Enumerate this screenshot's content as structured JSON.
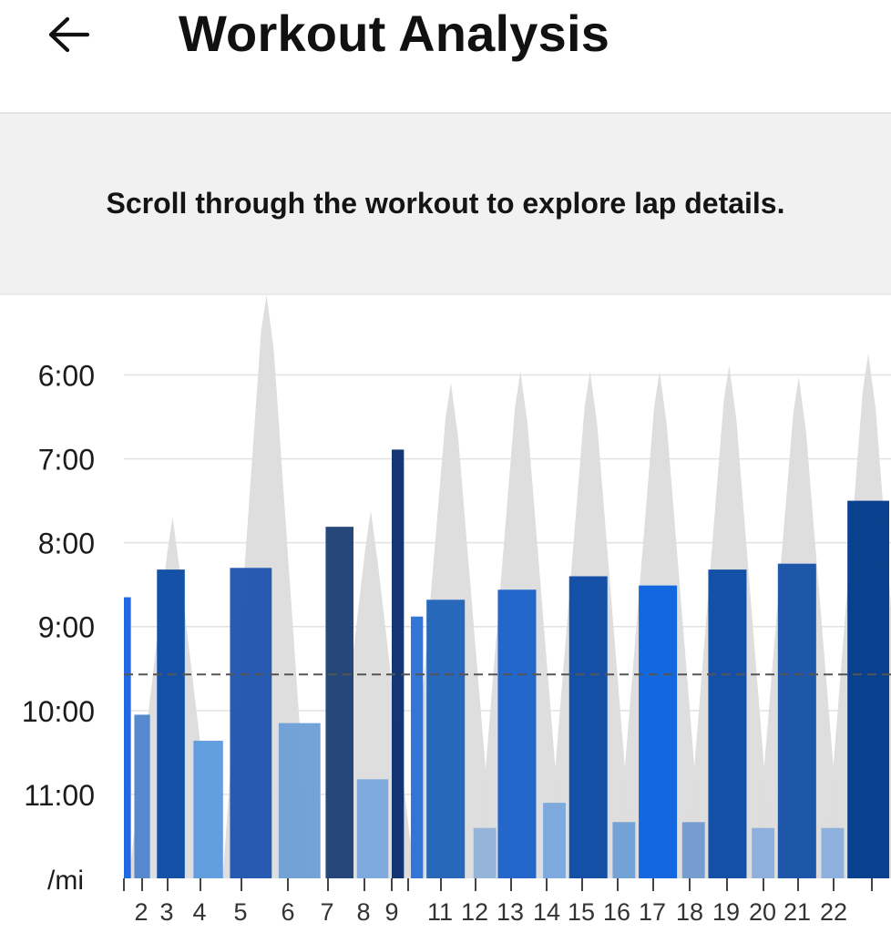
{
  "header": {
    "title": "Workout Analysis",
    "back_icon": "arrow-left-icon"
  },
  "banner": {
    "text": "Scroll through the workout to explore lap details."
  },
  "colors": {
    "elevation": "#dcdcdc",
    "gridline": "#e2e2e2",
    "average_line": "#555555",
    "bar_palette": [
      "#1a62e0",
      "#1f63b8",
      "#0b4aa3",
      "#1c3f74",
      "#5d9ae0",
      "#7aa7de",
      "#93b2d8",
      "#4f84cc",
      "#0a3f9b",
      "#003a8a"
    ]
  },
  "chart_data": {
    "type": "bar",
    "unit_label": "/mi",
    "y_tick_labels": [
      "6:00",
      "7:00",
      "8:00",
      "9:00",
      "10:00",
      "11:00"
    ],
    "y_ticks_min": [
      6,
      7,
      8,
      9,
      10,
      11
    ],
    "ylim_min_per_mile": [
      5.05,
      12.0
    ],
    "y_inverted": true,
    "average_pace_min": 9.57,
    "x_tick_labels": [
      "2",
      "3",
      "4",
      "5",
      "6",
      "7",
      "8",
      "9",
      "11",
      "12",
      "13",
      "14",
      "15",
      "16",
      "17",
      "18",
      "19",
      "20",
      "21",
      "22"
    ],
    "x_range": [
      1,
      23
    ],
    "elevation_peaks": [
      {
        "x": 2.4,
        "level": 0.62
      },
      {
        "x": 5.1,
        "level": 1.0
      },
      {
        "x": 8.1,
        "level": 0.63
      },
      {
        "x": 10.4,
        "level": 0.85
      },
      {
        "x": 12.4,
        "level": 0.87
      },
      {
        "x": 14.4,
        "level": 0.87
      },
      {
        "x": 16.4,
        "level": 0.87
      },
      {
        "x": 18.4,
        "level": 0.88
      },
      {
        "x": 20.4,
        "level": 0.86
      },
      {
        "x": 22.4,
        "level": 0.9
      }
    ],
    "laps": [
      {
        "x0": 1.0,
        "x1": 1.2,
        "pace": 8.65,
        "color": "#1a62e0"
      },
      {
        "x0": 1.3,
        "x1": 1.75,
        "pace": 10.05,
        "color": "#4f84cc"
      },
      {
        "x0": 1.95,
        "x1": 2.75,
        "pace": 8.32,
        "color": "#0b4aa3"
      },
      {
        "x0": 3.0,
        "x1": 3.85,
        "pace": 10.36,
        "color": "#5d9ae0"
      },
      {
        "x0": 4.05,
        "x1": 5.25,
        "pace": 8.3,
        "color": "#1f55b0"
      },
      {
        "x0": 5.45,
        "x1": 6.65,
        "pace": 10.15,
        "color": "#6e9fd6"
      },
      {
        "x0": 6.8,
        "x1": 7.6,
        "pace": 7.81,
        "color": "#1c3f74"
      },
      {
        "x0": 7.7,
        "x1": 8.6,
        "pace": 10.82,
        "color": "#7aa7de"
      },
      {
        "x0": 8.7,
        "x1": 9.05,
        "pace": 6.89,
        "color": "#0a2f6e"
      },
      {
        "x0": 9.25,
        "x1": 9.6,
        "pace": 8.88,
        "color": "#2c6fd6"
      },
      {
        "x0": 9.7,
        "x1": 10.8,
        "pace": 8.68,
        "color": "#1f63b8"
      },
      {
        "x0": 11.05,
        "x1": 11.7,
        "pace": 11.4,
        "color": "#93b2d8"
      },
      {
        "x0": 11.75,
        "x1": 12.85,
        "pace": 8.56,
        "color": "#1a62c8"
      },
      {
        "x0": 13.05,
        "x1": 13.7,
        "pace": 11.1,
        "color": "#7aa7de"
      },
      {
        "x0": 13.8,
        "x1": 14.9,
        "pace": 8.4,
        "color": "#0b4aa3"
      },
      {
        "x0": 15.05,
        "x1": 15.7,
        "pace": 11.33,
        "color": "#6e9fd6"
      },
      {
        "x0": 15.8,
        "x1": 16.9,
        "pace": 8.51,
        "color": "#0a63df"
      },
      {
        "x0": 17.05,
        "x1": 17.7,
        "pace": 11.33,
        "color": "#7399cf"
      },
      {
        "x0": 17.8,
        "x1": 18.9,
        "pace": 8.32,
        "color": "#0b4aa3"
      },
      {
        "x0": 19.05,
        "x1": 19.7,
        "pace": 11.4,
        "color": "#8aaedd"
      },
      {
        "x0": 19.8,
        "x1": 20.9,
        "pace": 8.25,
        "color": "#1650a8"
      },
      {
        "x0": 21.05,
        "x1": 21.7,
        "pace": 11.4,
        "color": "#8aaedd"
      },
      {
        "x0": 21.8,
        "x1": 23.0,
        "pace": 7.5,
        "color": "#003a8a"
      }
    ]
  }
}
